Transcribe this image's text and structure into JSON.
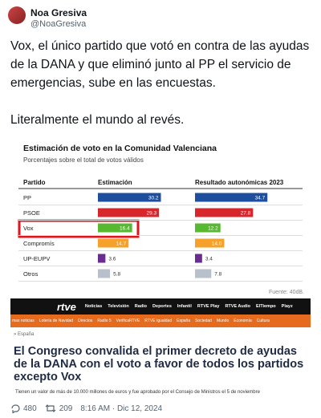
{
  "tweet": {
    "name": "Noa Gresiva",
    "handle": "@NoaGresiva",
    "text": "Vox, el único partido que votó en contra de las ayudas de la DANA y que eliminó junto al PP el servicio de emergencias, sube en las encuestas.\n\nLiteralmente el mundo al revés."
  },
  "chart_data": {
    "type": "bar",
    "orientation": "horizontal",
    "title": "Estimación de voto en la Comunidad Valenciana",
    "subtitle": "Porcentajes sobre el total de votos válidos",
    "category_header": "Partido",
    "categories": [
      "PP",
      "PSOE",
      "Vox",
      "Compromís",
      "UP-EUPV",
      "Otros"
    ],
    "colors": [
      "#1d4f9e",
      "#d8262d",
      "#56b92f",
      "#f5a12b",
      "#6b2c8f",
      "#b8c0cb"
    ],
    "series": [
      {
        "name": "Estimación",
        "values": [
          30.2,
          29.3,
          16.4,
          14.7,
          3.6,
          5.8
        ],
        "value_labels": [
          "30.2",
          "29.3",
          "16.4",
          "14.7",
          "3.6",
          "5.8"
        ]
      },
      {
        "name": "Resultado autonómicas 2023",
        "values": [
          34.7,
          27.8,
          12.2,
          14.0,
          3.4,
          7.8
        ],
        "value_labels": [
          "34.7",
          "27.8",
          "12.2",
          "14.0",
          "3.4",
          "7.8"
        ]
      }
    ],
    "xlim": [
      0,
      45
    ],
    "source": "Fuente: 40dB."
  },
  "news": {
    "logo": "rtve",
    "nav": [
      "Noticias",
      "Televisión",
      "Radio",
      "Deportes",
      "Infantil",
      "RTVE Play",
      "RTVE Audio",
      "ElTiempo",
      "Playz"
    ],
    "subnav": [
      "mas noticias",
      "Lotería de Navidad",
      "Directos",
      "Radio 5",
      "VerificaRTVE",
      "RTVE Igualdad",
      "España",
      "Sociedad",
      "Mundo",
      "Economía",
      "Cultura"
    ],
    "section": "» España",
    "headline": "El Congreso convalida el primer decreto de ayudas de la DANA con el voto a favor de todos los partidos excepto Vox",
    "summary": "Tienen un valor de más de 10.000 millones de euros y fue aprobado por el Consejo de Ministros el 5 de noviembre"
  },
  "footer": {
    "replies": "480",
    "reposts": "209",
    "timestamp": "8:16 AM · Dic 12, 2024"
  }
}
